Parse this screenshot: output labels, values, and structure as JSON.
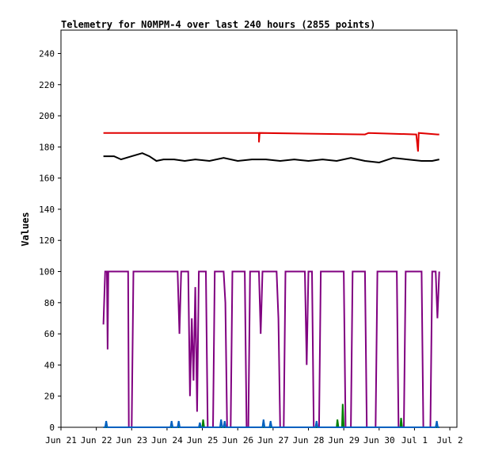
{
  "chart_data": {
    "type": "line",
    "title": "Telemetry for N0MPM-4 over last 240 hours (2855 points)",
    "ylabel": "Values",
    "xlabel": "",
    "ylim": [
      0,
      255
    ],
    "xlim": [
      0,
      11.2
    ],
    "yticks": [
      0,
      20,
      40,
      60,
      80,
      100,
      120,
      140,
      160,
      180,
      200,
      220,
      240
    ],
    "xticks": [
      {
        "label": "Jun 21",
        "x": 0
      },
      {
        "label": "Jun 22",
        "x": 1
      },
      {
        "label": "Jun 23",
        "x": 2
      },
      {
        "label": "Jun 24",
        "x": 3
      },
      {
        "label": "Jun 25",
        "x": 4
      },
      {
        "label": "Jun 26",
        "x": 5
      },
      {
        "label": "Jun 27",
        "x": 6
      },
      {
        "label": "Jun 28",
        "x": 7
      },
      {
        "label": "Jun 29",
        "x": 8
      },
      {
        "label": "Jun 30",
        "x": 9
      },
      {
        "label": "Jul 1",
        "x": 10
      },
      {
        "label": "Jul 2",
        "x": 11
      }
    ],
    "grid": false,
    "legend": "none",
    "series": [
      {
        "color": "#e00000",
        "points": [
          [
            1.2,
            189
          ],
          [
            5.6,
            189
          ],
          [
            5.6,
            183
          ],
          [
            5.62,
            189
          ],
          [
            8.6,
            188
          ],
          [
            8.7,
            189
          ],
          [
            10.05,
            188
          ],
          [
            10.1,
            177
          ],
          [
            10.12,
            189
          ],
          [
            10.65,
            188
          ],
          [
            10.7,
            188
          ]
        ]
      },
      {
        "color": "#000000",
        "points": [
          [
            1.2,
            174
          ],
          [
            1.5,
            174
          ],
          [
            1.7,
            172
          ],
          [
            2.0,
            174
          ],
          [
            2.3,
            176
          ],
          [
            2.5,
            174
          ],
          [
            2.7,
            171
          ],
          [
            2.9,
            172
          ],
          [
            3.2,
            172
          ],
          [
            3.5,
            171
          ],
          [
            3.8,
            172
          ],
          [
            4.2,
            171
          ],
          [
            4.6,
            173
          ],
          [
            5.0,
            171
          ],
          [
            5.4,
            172
          ],
          [
            5.8,
            172
          ],
          [
            6.2,
            171
          ],
          [
            6.6,
            172
          ],
          [
            7.0,
            171
          ],
          [
            7.4,
            172
          ],
          [
            7.8,
            171
          ],
          [
            8.2,
            173
          ],
          [
            8.6,
            171
          ],
          [
            9.0,
            170
          ],
          [
            9.4,
            173
          ],
          [
            9.8,
            172
          ],
          [
            10.2,
            171
          ],
          [
            10.5,
            171
          ],
          [
            10.7,
            172
          ]
        ]
      },
      {
        "color": "#800080",
        "points": [
          [
            1.2,
            66
          ],
          [
            1.25,
            100
          ],
          [
            1.3,
            100
          ],
          [
            1.32,
            50
          ],
          [
            1.34,
            100
          ],
          [
            1.9,
            100
          ],
          [
            1.92,
            0
          ],
          [
            2.0,
            0
          ],
          [
            2.05,
            100
          ],
          [
            3.3,
            100
          ],
          [
            3.35,
            60
          ],
          [
            3.4,
            100
          ],
          [
            3.6,
            100
          ],
          [
            3.65,
            20
          ],
          [
            3.7,
            70
          ],
          [
            3.75,
            30
          ],
          [
            3.8,
            90
          ],
          [
            3.85,
            10
          ],
          [
            3.9,
            100
          ],
          [
            4.1,
            100
          ],
          [
            4.15,
            0
          ],
          [
            4.3,
            0
          ],
          [
            4.35,
            100
          ],
          [
            4.6,
            100
          ],
          [
            4.65,
            80
          ],
          [
            4.7,
            0
          ],
          [
            4.8,
            0
          ],
          [
            4.85,
            100
          ],
          [
            5.2,
            100
          ],
          [
            5.25,
            0
          ],
          [
            5.3,
            0
          ],
          [
            5.35,
            100
          ],
          [
            5.6,
            100
          ],
          [
            5.65,
            60
          ],
          [
            5.7,
            100
          ],
          [
            6.1,
            100
          ],
          [
            6.15,
            70
          ],
          [
            6.2,
            0
          ],
          [
            6.3,
            0
          ],
          [
            6.35,
            100
          ],
          [
            6.9,
            100
          ],
          [
            6.95,
            40
          ],
          [
            7.0,
            100
          ],
          [
            7.1,
            100
          ],
          [
            7.15,
            0
          ],
          [
            7.3,
            0
          ],
          [
            7.35,
            100
          ],
          [
            8.0,
            100
          ],
          [
            8.05,
            0
          ],
          [
            8.2,
            0
          ],
          [
            8.25,
            100
          ],
          [
            8.6,
            100
          ],
          [
            8.65,
            0
          ],
          [
            8.9,
            0
          ],
          [
            8.95,
            100
          ],
          [
            9.5,
            100
          ],
          [
            9.55,
            0
          ],
          [
            9.7,
            0
          ],
          [
            9.75,
            100
          ],
          [
            10.2,
            100
          ],
          [
            10.25,
            0
          ],
          [
            10.45,
            0
          ],
          [
            10.5,
            100
          ],
          [
            10.6,
            100
          ],
          [
            10.65,
            70
          ],
          [
            10.7,
            100
          ]
        ]
      },
      {
        "color": "#008000",
        "points": [
          [
            1.2,
            0
          ],
          [
            4.0,
            0
          ],
          [
            4.02,
            5
          ],
          [
            4.05,
            0
          ],
          [
            7.8,
            0
          ],
          [
            7.82,
            5
          ],
          [
            7.85,
            0
          ],
          [
            7.95,
            0
          ],
          [
            7.97,
            15
          ],
          [
            8.0,
            0
          ],
          [
            9.6,
            0
          ],
          [
            9.62,
            6
          ],
          [
            9.65,
            0
          ],
          [
            10.7,
            0
          ]
        ]
      },
      {
        "color": "#0060c0",
        "points": [
          [
            1.2,
            0
          ],
          [
            1.25,
            0
          ],
          [
            1.28,
            4
          ],
          [
            1.31,
            0
          ],
          [
            3.1,
            0
          ],
          [
            3.13,
            4
          ],
          [
            3.16,
            0
          ],
          [
            3.3,
            0
          ],
          [
            3.33,
            4
          ],
          [
            3.36,
            0
          ],
          [
            3.9,
            0
          ],
          [
            3.93,
            3
          ],
          [
            3.96,
            0
          ],
          [
            4.5,
            0
          ],
          [
            4.53,
            5
          ],
          [
            4.56,
            0
          ],
          [
            4.6,
            0
          ],
          [
            4.63,
            4
          ],
          [
            4.66,
            0
          ],
          [
            5.7,
            0
          ],
          [
            5.73,
            5
          ],
          [
            5.76,
            0
          ],
          [
            5.9,
            0
          ],
          [
            5.93,
            4
          ],
          [
            5.96,
            0
          ],
          [
            7.2,
            0
          ],
          [
            7.23,
            4
          ],
          [
            7.26,
            0
          ],
          [
            10.6,
            0
          ],
          [
            10.63,
            4
          ],
          [
            10.66,
            0
          ],
          [
            10.7,
            0
          ]
        ]
      }
    ]
  }
}
